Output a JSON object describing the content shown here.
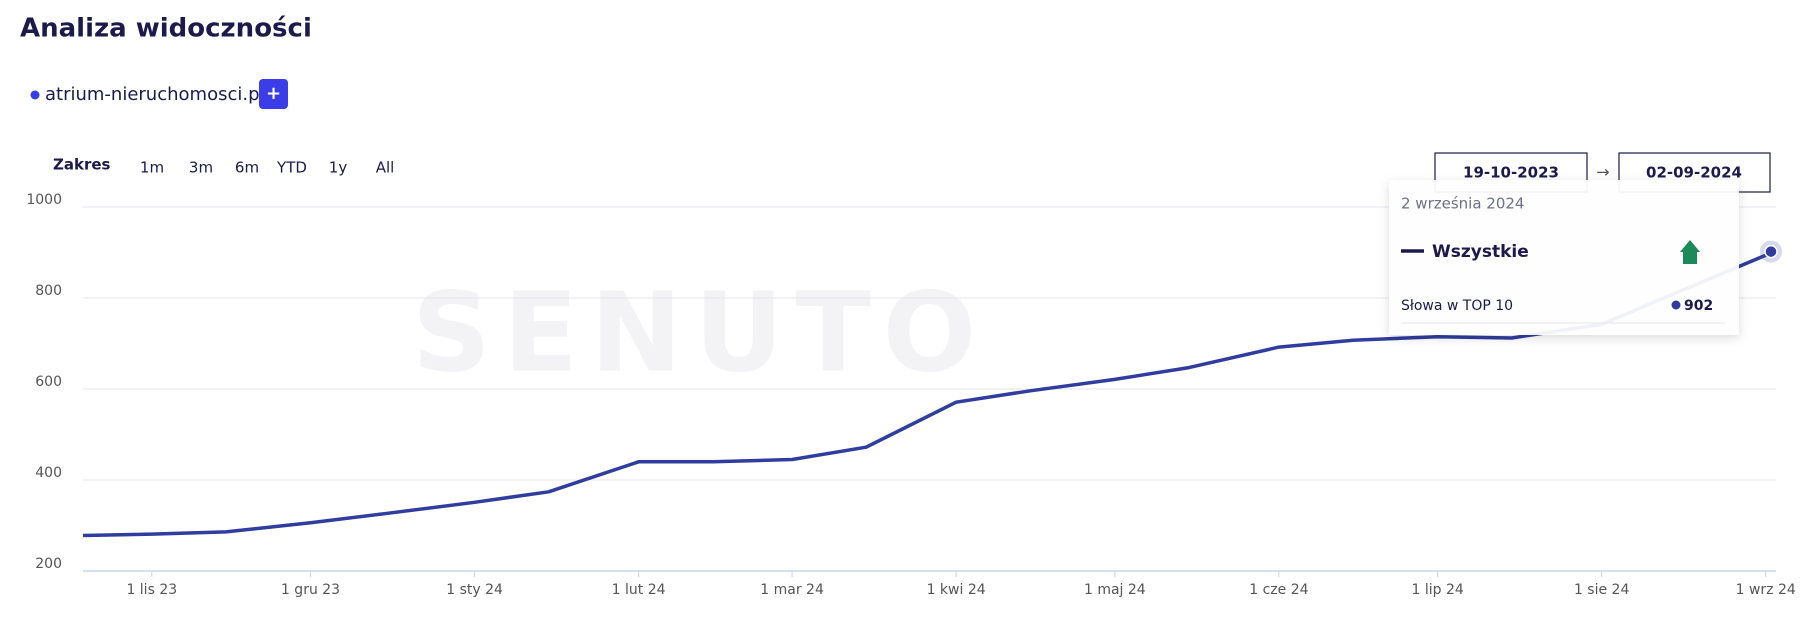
{
  "header": {
    "title": "Analiza widoczności",
    "domain": "atrium-nieruchomosci.pl",
    "add_button": "+"
  },
  "controls": {
    "range_label": "Zakres",
    "ranges": [
      "1m",
      "3m",
      "6m",
      "YTD",
      "1y",
      "All"
    ],
    "date_from": "19-10-2023",
    "arrow": "→",
    "date_to": "02-09-2024"
  },
  "watermark": "SENUTO",
  "tooltip": {
    "date": "2 września 2024",
    "metric": "Słowa w TOP 10"
  },
  "chart_data": {
    "type": "line",
    "x": [
      "2023-10-19",
      "2023-11-01",
      "2023-11-15",
      "2023-12-01",
      "2023-12-15",
      "2024-01-01",
      "2024-01-15",
      "2024-02-01",
      "2024-02-15",
      "2024-03-01",
      "2024-03-15",
      "2024-04-01",
      "2024-04-15",
      "2024-05-01",
      "2024-05-15",
      "2024-06-01",
      "2024-06-15",
      "2024-07-01",
      "2024-07-15",
      "2024-08-01",
      "2024-08-15",
      "2024-09-01",
      "2024-09-02"
    ],
    "series": [
      {
        "name": "Wszystkie",
        "color": "#303c9e",
        "values": [
          278,
          281,
          286,
          306,
          326,
          351,
          374,
          440,
          440,
          445,
          472,
          571,
          596,
          621,
          647,
          692,
          707,
          715,
          712,
          742,
          811,
          894,
          902
        ]
      }
    ],
    "xlim": [
      "2023-10-19",
      "2024-09-02"
    ],
    "xticks": [
      {
        "value": "2023-11-01",
        "label": "1 lis 23"
      },
      {
        "value": "2023-12-01",
        "label": "1 gru 23"
      },
      {
        "value": "2024-01-01",
        "label": "1 sty 24"
      },
      {
        "value": "2024-02-01",
        "label": "1 lut 24"
      },
      {
        "value": "2024-03-01",
        "label": "1 mar 24"
      },
      {
        "value": "2024-04-01",
        "label": "1 kwi 24"
      },
      {
        "value": "2024-05-01",
        "label": "1 maj 24"
      },
      {
        "value": "2024-06-01",
        "label": "1 cze 24"
      },
      {
        "value": "2024-07-01",
        "label": "1 lip 24"
      },
      {
        "value": "2024-08-01",
        "label": "1 sie 24"
      },
      {
        "value": "2024-09-01",
        "label": "1 wrz 24"
      }
    ],
    "ylim": [
      200,
      1000
    ],
    "yticks": [
      200,
      400,
      600,
      800,
      1000
    ],
    "grid": true
  }
}
